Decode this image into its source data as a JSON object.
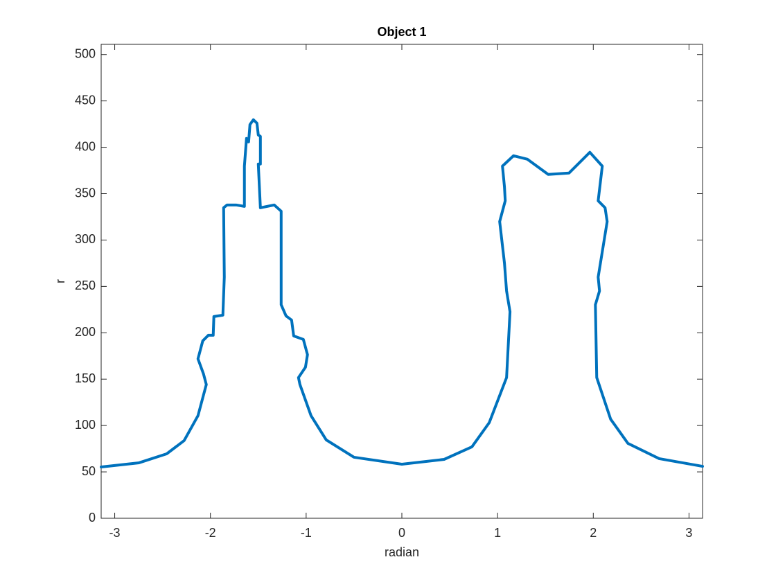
{
  "chart_data": {
    "type": "line",
    "title": "Object 1",
    "x_label": "radian",
    "y_label": "r",
    "x": [
      -3.1416,
      -2.746,
      -2.457,
      -2.275,
      -2.13,
      -2.043,
      -2.072,
      -2.13,
      -2.08,
      -2.022,
      -1.971,
      -1.964,
      -1.87,
      -1.855,
      -1.862,
      -1.826,
      -1.732,
      -1.645,
      -1.645,
      -1.623,
      -1.601,
      -1.587,
      -1.551,
      -1.514,
      -1.5,
      -1.478,
      -1.478,
      -1.5,
      -1.478,
      -1.333,
      -1.261,
      -1.261,
      -1.21,
      -1.152,
      -1.13,
      -1.029,
      -0.986,
      -1.007,
      -1.08,
      -1.065,
      -0.949,
      -0.79,
      -0.5,
      0,
      0.442,
      0.732,
      0.913,
      1.094,
      1.13,
      1.094,
      1.072,
      1.022,
      1.08,
      1.072,
      1.051,
      1.167,
      1.312,
      1.529,
      1.746,
      1.964,
      2.094,
      2.051,
      2.123,
      2.145,
      2.051,
      2.065,
      2.022,
      2.036,
      2.181,
      2.362,
      2.688,
      3.1416
    ],
    "series": [
      {
        "name": "Object 1",
        "color": "#0072bd",
        "values": [
          55.3,
          59.8,
          69.5,
          83.7,
          110.6,
          144.2,
          155.5,
          171.9,
          191.3,
          197.3,
          197.3,
          217.5,
          219,
          260,
          334.8,
          337.8,
          337.8,
          336.3,
          379.7,
          409.6,
          405.8,
          424.5,
          429.7,
          426,
          413.3,
          411.8,
          381.9,
          381.9,
          334.8,
          337.8,
          331.1,
          230.2,
          218.2,
          213.7,
          196.6,
          192.8,
          176.4,
          162.9,
          151.7,
          144.2,
          110.6,
          84.5,
          65.8,
          58.3,
          63.5,
          77,
          103.1,
          151.7,
          222.7,
          245.1,
          275,
          319.9,
          342.3,
          357.3,
          379.7,
          390.9,
          387.1,
          370.7,
          372.2,
          394.6,
          379.7,
          342.3,
          334.8,
          319.9,
          260,
          245.1,
          230.2,
          151.7,
          106.9,
          80.7,
          64.3,
          56
        ]
      }
    ],
    "xlim": [
      -3.1416,
      3.1416
    ],
    "xticks": [
      -3,
      -2,
      -1,
      0,
      1,
      2,
      3
    ],
    "ylim": [
      0,
      511
    ],
    "yticks": [
      0,
      50,
      100,
      150,
      200,
      250,
      300,
      350,
      400,
      450,
      500
    ]
  }
}
